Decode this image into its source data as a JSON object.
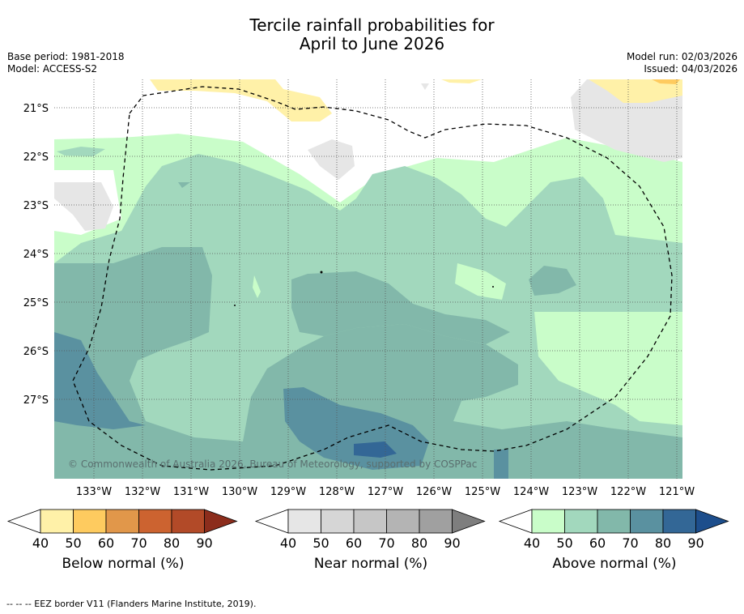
{
  "title_line1": "Tercile rainfall probabilities for",
  "title_line2": "April to June 2026",
  "base_period": "Base period: 1981-2018",
  "model": "Model: ACCESS-S2",
  "model_run": "Model run: 02/03/2026",
  "issued": "Issued: 04/03/2026",
  "copyright": "© Commonwealth of Australia 2026, Bureau of Meteorology, supported by COSPPac",
  "lon_labels": [
    "133°W",
    "132°W",
    "131°W",
    "130°W",
    "129°W",
    "128°W",
    "127°W",
    "126°W",
    "125°W",
    "124°W",
    "123°W",
    "122°W",
    "121°W"
  ],
  "lat_labels": [
    "21°S",
    "22°S",
    "23°S",
    "24°S",
    "25°S",
    "26°S",
    "27°S"
  ],
  "colorbars": [
    {
      "label": "Below normal (%)",
      "ticks": [
        "40",
        "50",
        "60",
        "70",
        "80",
        "90"
      ],
      "colors": [
        "#fff1a8",
        "#fecb5f",
        "#e1974a",
        "#cc6330",
        "#b24a28",
        "#8c2d1c"
      ]
    },
    {
      "label": "Near normal (%)",
      "ticks": [
        "40",
        "50",
        "60",
        "70",
        "80",
        "90"
      ],
      "colors": [
        "#e6e6e6",
        "#d6d6d6",
        "#c6c6c6",
        "#b4b4b4",
        "#a0a0a0",
        "#7e7e7e"
      ]
    },
    {
      "label": "Above normal (%)",
      "ticks": [
        "40",
        "50",
        "60",
        "70",
        "80",
        "90"
      ],
      "colors": [
        "#c9fdc9",
        "#a2d8bd",
        "#82b8aa",
        "#5a91a0",
        "#336796",
        "#1d4e8c"
      ]
    }
  ],
  "footer": "--  --  -- EEZ border V11 (Flanders Marine Institute, 2019)."
}
